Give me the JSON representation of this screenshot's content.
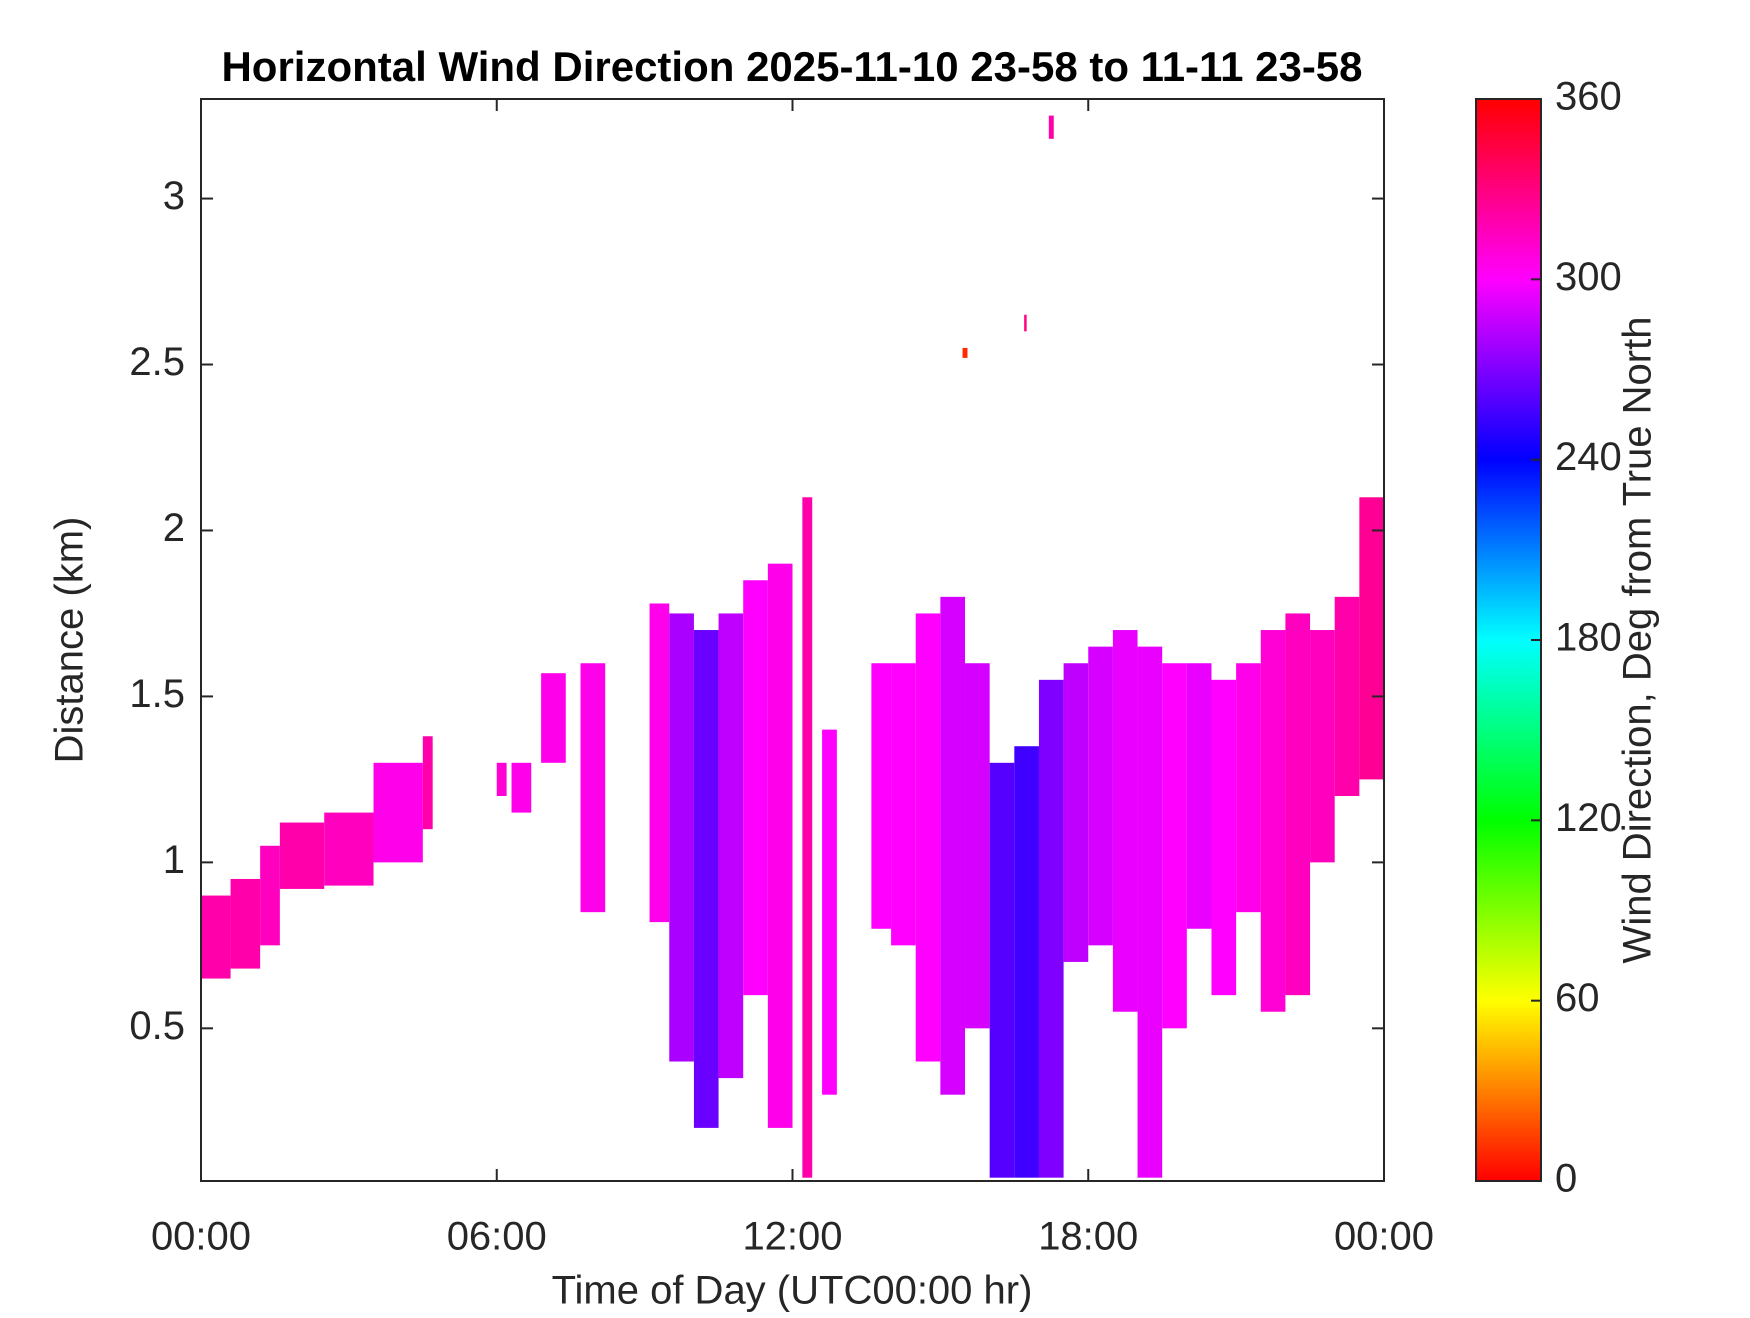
{
  "chart_data": {
    "type": "heatmap",
    "title": "Horizontal Wind Direction 2025-11-10 23-58 to 11-11 23-58",
    "x_label": "Time of Day (UTC00:00 hr)",
    "y_label": "Distance (km)",
    "colorbar_label": "Wind Direction, Deg from True North",
    "colormap": "hsv",
    "xlim": [
      0,
      24
    ],
    "xticks": [
      {
        "value": 0,
        "label": "00:00"
      },
      {
        "value": 6,
        "label": "06:00"
      },
      {
        "value": 12,
        "label": "12:00"
      },
      {
        "value": 18,
        "label": "18:00"
      },
      {
        "value": 24,
        "label": "00:00"
      }
    ],
    "ylim": [
      0.04,
      3.3
    ],
    "yticks": [
      0.5,
      1,
      1.5,
      2,
      2.5,
      3
    ],
    "clim": [
      0,
      360
    ],
    "cticks": [
      0,
      60,
      120,
      180,
      240,
      300,
      360
    ],
    "x_start": [
      0,
      0.6,
      1.2,
      1.6,
      2.5,
      3.5,
      4.5,
      6.0,
      6.3,
      6.9,
      7.7,
      9.1,
      9.5,
      10.0,
      10.5,
      11.0,
      11.5,
      12.2,
      12.6,
      13.6,
      14.0,
      14.5,
      15.0,
      15.5,
      16.0,
      16.5,
      17.0,
      17.5,
      18.0,
      18.5,
      19.0,
      19.5,
      20.0,
      20.5,
      21.0,
      21.5,
      22.0,
      22.5,
      23.0,
      23.5,
      17.2,
      16.7,
      15.45
    ],
    "x_end": [
      0.6,
      1.2,
      1.6,
      2.5,
      3.5,
      4.5,
      4.7,
      6.2,
      6.7,
      7.4,
      8.2,
      9.5,
      10.0,
      10.5,
      11.0,
      11.5,
      12.0,
      12.4,
      12.9,
      14.0,
      14.5,
      15.0,
      15.5,
      16.0,
      16.5,
      17.0,
      17.5,
      18.0,
      18.5,
      19.0,
      19.5,
      20.0,
      20.5,
      21.0,
      21.5,
      22.0,
      22.5,
      23.0,
      23.5,
      24.0,
      17.3,
      16.75,
      15.55
    ],
    "y_bottom": [
      0.65,
      0.68,
      0.75,
      0.92,
      0.93,
      1.0,
      1.1,
      1.2,
      1.15,
      1.3,
      0.85,
      0.82,
      0.4,
      0.2,
      0.35,
      0.6,
      0.2,
      0.05,
      0.3,
      0.8,
      0.75,
      0.4,
      0.3,
      0.5,
      0.05,
      0.05,
      0.05,
      0.7,
      0.75,
      0.55,
      0.05,
      0.5,
      0.8,
      0.6,
      0.85,
      0.55,
      0.6,
      1.0,
      1.2,
      1.25,
      3.18,
      2.6,
      2.52
    ],
    "y_top": [
      0.9,
      0.95,
      1.05,
      1.12,
      1.15,
      1.3,
      1.38,
      1.3,
      1.3,
      1.57,
      1.6,
      1.78,
      1.75,
      1.7,
      1.75,
      1.85,
      1.9,
      2.1,
      1.4,
      1.6,
      1.6,
      1.75,
      1.8,
      1.6,
      1.3,
      1.35,
      1.55,
      1.6,
      1.65,
      1.7,
      1.65,
      1.6,
      1.6,
      1.55,
      1.6,
      1.7,
      1.75,
      1.7,
      1.8,
      2.1,
      3.25,
      2.65,
      2.55
    ],
    "values": [
      320,
      320,
      315,
      320,
      315,
      305,
      320,
      310,
      305,
      305,
      305,
      305,
      280,
      265,
      285,
      300,
      305,
      320,
      300,
      300,
      300,
      300,
      290,
      290,
      260,
      255,
      270,
      285,
      290,
      295,
      295,
      300,
      295,
      300,
      305,
      310,
      315,
      315,
      320,
      325,
      320,
      330,
      10
    ]
  }
}
